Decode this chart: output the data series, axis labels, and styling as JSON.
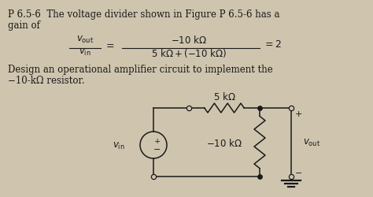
{
  "bg_color": "#cfc5ae",
  "text_color": "#1a1a1a",
  "fig_w": 4.74,
  "fig_h": 2.51,
  "dpi": 100,
  "title_line1": "P 6.5-6  The voltage divider shown in Figure P 6.5-6 has a",
  "title_line2": "gain of",
  "design_text1": "Design an operational amplifier circuit to implement the",
  "design_text2": "−10-kΩ resistor.",
  "res1_label": "5 kΩ",
  "res2_label": "−10 kΩ"
}
